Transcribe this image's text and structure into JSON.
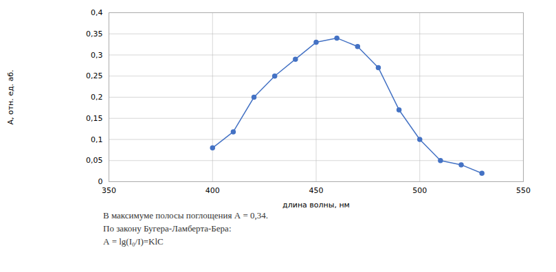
{
  "chart_data": {
    "type": "line",
    "x": [
      400,
      410,
      420,
      430,
      440,
      450,
      460,
      470,
      480,
      490,
      500,
      510,
      520,
      530
    ],
    "values": [
      0.08,
      0.118,
      0.2,
      0.25,
      0.29,
      0.33,
      0.34,
      0.32,
      0.27,
      0.17,
      0.1,
      0.05,
      0.04,
      0.02
    ],
    "color": "#4472C4",
    "marker": "circle",
    "xlabel": "длина волны, нм",
    "ylabel": "А, отн. ед. аб.",
    "xlim": [
      350,
      550
    ],
    "ylim": [
      0,
      0.4
    ],
    "xticks": [
      350,
      400,
      450,
      500,
      550
    ],
    "yticks": [
      0,
      {
        "value": 0.05,
        "label": "0,05"
      },
      {
        "value": 0.1,
        "label": "0,1"
      },
      {
        "value": 0.15,
        "label": "0,15"
      },
      {
        "value": 0.2,
        "label": "0,2"
      },
      {
        "value": 0.25,
        "label": "0,25"
      },
      {
        "value": 0.3,
        "label": "0,3"
      },
      {
        "value": 0.35,
        "label": "0,35"
      },
      {
        "value": 0.4,
        "label": "0,4"
      }
    ],
    "grid": true,
    "annotations": [
      "В максимуме полосы поглощения A = 0,34.",
      "По закону Бугера-Ламберта-Бера:",
      "A = lg(I₀/I)=KlC"
    ]
  }
}
